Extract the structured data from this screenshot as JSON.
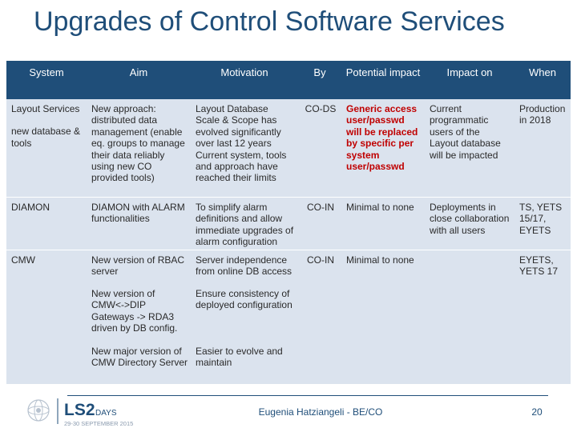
{
  "title": "Upgrades of Control Software Services",
  "table": {
    "headers": [
      "System",
      "Aim",
      "Motivation",
      "By",
      "Potential impact",
      "Impact on",
      "When"
    ],
    "layout_services": {
      "system": "Layout Services",
      "system_sub": "new database & tools",
      "aim": "New approach: distributed data management (enable eq. groups to manage their data reliably using new CO provided tools)",
      "motivation": "Layout Database Scale & Scope has evolved significantly over last 12 years Current system, tools and approach have reached their limits",
      "by": "CO-DS",
      "impact": "Generic access user/passwd will be replaced by specific per system user/passwd",
      "impact_on": "Current programmatic users of the Layout database will be impacted",
      "when": "Production in 2018"
    },
    "diamon": {
      "system": "DIAMON",
      "aim": "DIAMON with ALARM functionalities",
      "motivation": "To simplify alarm definitions and allow immediate upgrades of alarm configuration",
      "by": "CO-IN",
      "impact": "Minimal to none",
      "impact_on": "Deployments in close collaboration with all users",
      "when": "TS, YETS 15/17, EYETS"
    },
    "cmw": {
      "system": "CMW",
      "aim1": "New version of RBAC server",
      "motivation1": "Server independence from online DB access",
      "aim2": "New version of CMW<->DIP Gateways -> RDA3 driven by DB config.",
      "motivation2": "Ensure consistency of deployed configuration",
      "aim3": "New major version of CMW Directory Server",
      "motivation3": "Easier to evolve and maintain",
      "by": "CO-IN",
      "impact": "Minimal to none",
      "impact_on": "",
      "when": "EYETS, YETS 17"
    }
  },
  "footer": {
    "logo_text": "LS2",
    "logo_days": "DAYS",
    "logo_dates": "29-30 SEPTEMBER 2015",
    "presenter": "Eugenia Hatziangeli - BE/CO",
    "page": "20"
  },
  "colors": {
    "header_bg": "#1f4e79",
    "band": "#dbe3ee",
    "highlight_red": "#c00000",
    "title": "#1f4e79"
  }
}
